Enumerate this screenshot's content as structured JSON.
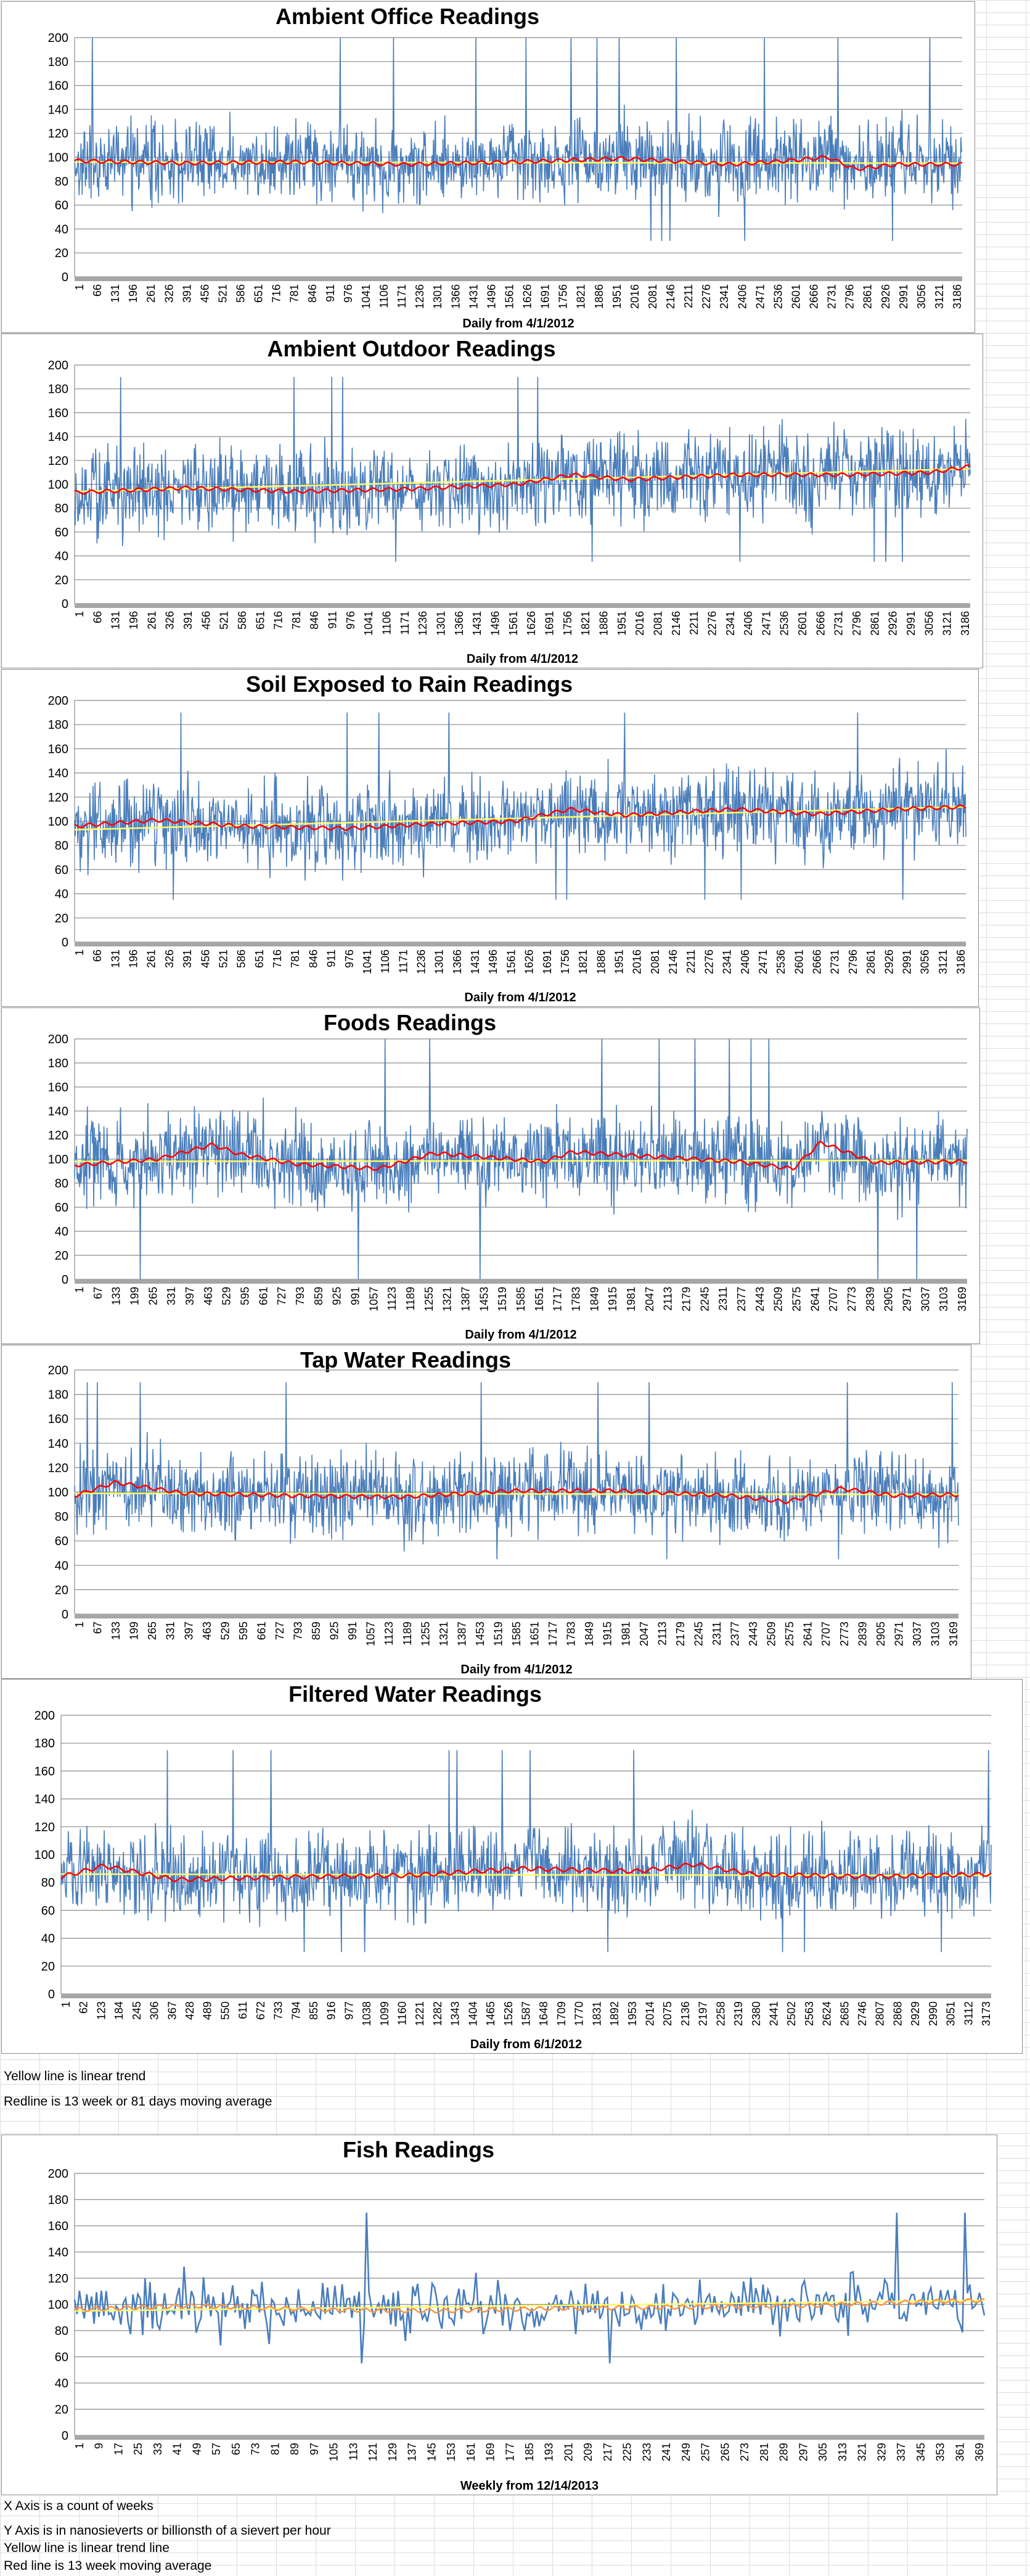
{
  "colors": {
    "raw_series": "#4a7ebb",
    "moving_average": "#ff0000",
    "moving_average_fish": "#f79646",
    "linear_trend": "#ffff66",
    "axis_band": "#a6a6a6",
    "gridline": "#8c8c8c"
  },
  "chart_data": [
    {
      "type": "line",
      "title": "Ambient Office Readings",
      "xlabel": "Daily from 4/1/2012",
      "ylabel": "",
      "ylim": [
        0,
        200
      ],
      "yticks": [
        0,
        20,
        40,
        60,
        80,
        100,
        120,
        140,
        160,
        180,
        200
      ],
      "xticks": [
        "1",
        "66",
        "131",
        "196",
        "261",
        "326",
        "391",
        "456",
        "521",
        "586",
        "651",
        "716",
        "781",
        "846",
        "911",
        "976",
        "1041",
        "1106",
        "1171",
        "1236",
        "1301",
        "1366",
        "1431",
        "1496",
        "1561",
        "1626",
        "1691",
        "1756",
        "1821",
        "1886",
        "1951",
        "2016",
        "2081",
        "2146",
        "2211",
        "2276",
        "2341",
        "2406",
        "2471",
        "2536",
        "2601",
        "2666",
        "2731",
        "2796",
        "2861",
        "2926",
        "2991",
        "3056",
        "3121",
        "3186"
      ],
      "grid": true,
      "series": [
        {
          "role": "raw",
          "x_range": [
            1,
            3240
          ],
          "mean": 95,
          "spread": 22,
          "min": 30,
          "max": 200
        },
        {
          "role": "moving_average",
          "x": [
            1,
            400,
            800,
            1200,
            1600,
            2000,
            2400,
            2600,
            2750,
            2850,
            3000,
            3240
          ],
          "y": [
            97,
            95,
            96,
            94,
            96,
            99,
            94,
            97,
            100,
            90,
            94,
            94
          ]
        },
        {
          "role": "linear_trend",
          "x": [
            1,
            3240
          ],
          "y": [
            96,
            95
          ]
        }
      ]
    },
    {
      "type": "line",
      "title": "Ambient Outdoor Readings",
      "xlabel": "Daily from 4/1/2012",
      "ylabel": "",
      "ylim": [
        0,
        200
      ],
      "yticks": [
        0,
        20,
        40,
        60,
        80,
        100,
        120,
        140,
        160,
        180,
        200
      ],
      "xticks": [
        "1",
        "66",
        "131",
        "196",
        "261",
        "326",
        "391",
        "456",
        "521",
        "586",
        "651",
        "716",
        "781",
        "846",
        "911",
        "976",
        "1041",
        "1106",
        "1171",
        "1236",
        "1301",
        "1366",
        "1431",
        "1496",
        "1561",
        "1626",
        "1691",
        "1756",
        "1821",
        "1886",
        "1951",
        "2016",
        "2081",
        "2146",
        "2211",
        "2276",
        "2341",
        "2406",
        "2471",
        "2536",
        "2601",
        "2666",
        "2731",
        "2796",
        "2861",
        "2926",
        "2991",
        "3056",
        "3121",
        "3186"
      ],
      "grid": true,
      "series": [
        {
          "role": "raw",
          "x_range": [
            1,
            3240
          ],
          "mean": 100,
          "spread": 24,
          "min": 35,
          "max": 190
        },
        {
          "role": "moving_average",
          "x": [
            1,
            400,
            800,
            1200,
            1600,
            1800,
            2000,
            2400,
            2800,
            3100,
            3240
          ],
          "y": [
            93,
            97,
            94,
            96,
            100,
            108,
            104,
            108,
            108,
            110,
            115
          ]
        },
        {
          "role": "linear_trend",
          "x": [
            1,
            3240
          ],
          "y": [
            94,
            113
          ]
        }
      ]
    },
    {
      "type": "line",
      "title": "Soil Exposed to Rain Readings",
      "xlabel": "Daily from 4/1/2012",
      "ylabel": "",
      "ylim": [
        0,
        200
      ],
      "yticks": [
        0,
        20,
        40,
        60,
        80,
        100,
        120,
        140,
        160,
        180,
        200
      ],
      "xticks": [
        "1",
        "66",
        "131",
        "196",
        "261",
        "326",
        "391",
        "456",
        "521",
        "586",
        "651",
        "716",
        "781",
        "846",
        "911",
        "976",
        "1041",
        "1106",
        "1171",
        "1236",
        "1301",
        "1366",
        "1431",
        "1496",
        "1561",
        "1626",
        "1691",
        "1756",
        "1821",
        "1886",
        "1951",
        "2016",
        "2081",
        "2146",
        "2211",
        "2276",
        "2341",
        "2406",
        "2471",
        "2536",
        "2601",
        "2666",
        "2731",
        "2796",
        "2861",
        "2926",
        "2991",
        "3056",
        "3121",
        "3186"
      ],
      "grid": true,
      "series": [
        {
          "role": "raw",
          "x_range": [
            1,
            3240
          ],
          "mean": 102,
          "spread": 23,
          "min": 35,
          "max": 190
        },
        {
          "role": "moving_average",
          "x": [
            1,
            300,
            600,
            1000,
            1300,
            1600,
            1800,
            2000,
            2400,
            2700,
            3000,
            3240
          ],
          "y": [
            96,
            101,
            96,
            94,
            98,
            100,
            110,
            105,
            110,
            106,
            110,
            112
          ]
        },
        {
          "role": "linear_trend",
          "x": [
            1,
            3240
          ],
          "y": [
            93,
            112
          ]
        }
      ]
    },
    {
      "type": "line",
      "title": "Foods Readings",
      "xlabel": "Daily from 4/1/2012",
      "ylabel": "",
      "ylim": [
        0,
        200
      ],
      "yticks": [
        0,
        20,
        40,
        60,
        80,
        100,
        120,
        140,
        160,
        180,
        200
      ],
      "xticks": [
        "1",
        "67",
        "133",
        "199",
        "265",
        "331",
        "397",
        "463",
        "529",
        "595",
        "661",
        "727",
        "793",
        "859",
        "925",
        "991",
        "1057",
        "1123",
        "1189",
        "1255",
        "1321",
        "1387",
        "1453",
        "1519",
        "1585",
        "1651",
        "1717",
        "1783",
        "1849",
        "1915",
        "1981",
        "2047",
        "2113",
        "2179",
        "2245",
        "2311",
        "2377",
        "2443",
        "2509",
        "2575",
        "2641",
        "2707",
        "2773",
        "2839",
        "2905",
        "2971",
        "3037",
        "3103",
        "3169"
      ],
      "grid": true,
      "series": [
        {
          "role": "raw",
          "x_range": [
            1,
            3230
          ],
          "mean": 98,
          "spread": 24,
          "min": 0,
          "max": 200
        },
        {
          "role": "moving_average",
          "x": [
            1,
            300,
            500,
            600,
            800,
            1100,
            1300,
            1700,
            1800,
            2100,
            2400,
            2600,
            2700,
            2900,
            3230
          ],
          "y": [
            95,
            100,
            112,
            104,
            96,
            92,
            105,
            98,
            106,
            102,
            98,
            92,
            114,
            97,
            98
          ]
        },
        {
          "role": "linear_trend",
          "x": [
            1,
            3230
          ],
          "y": [
            98,
            99
          ]
        }
      ]
    },
    {
      "type": "line",
      "title": "Tap Water Readings",
      "xlabel": "Daily from 4/1/2012",
      "ylabel": "",
      "ylim": [
        0,
        200
      ],
      "yticks": [
        0,
        20,
        40,
        60,
        80,
        100,
        120,
        140,
        160,
        180,
        200
      ],
      "xticks": [
        "1",
        "67",
        "133",
        "199",
        "265",
        "331",
        "397",
        "463",
        "529",
        "595",
        "661",
        "727",
        "793",
        "859",
        "925",
        "991",
        "1057",
        "1123",
        "1189",
        "1255",
        "1321",
        "1387",
        "1453",
        "1519",
        "1585",
        "1651",
        "1717",
        "1783",
        "1849",
        "1915",
        "1981",
        "2047",
        "2113",
        "2179",
        "2245",
        "2311",
        "2377",
        "2443",
        "2509",
        "2575",
        "2641",
        "2707",
        "2773",
        "2839",
        "2905",
        "2971",
        "3037",
        "3103",
        "3169"
      ],
      "grid": true,
      "series": [
        {
          "role": "raw",
          "x_range": [
            1,
            3230
          ],
          "mean": 98,
          "spread": 22,
          "min": 45,
          "max": 190
        },
        {
          "role": "moving_average",
          "x": [
            1,
            150,
            400,
            800,
            1200,
            1600,
            2000,
            2400,
            2600,
            2800,
            3000,
            3230
          ],
          "y": [
            97,
            108,
            99,
            97,
            96,
            101,
            101,
            97,
            92,
            103,
            97,
            98
          ]
        },
        {
          "role": "linear_trend",
          "x": [
            1,
            3230
          ],
          "y": [
            99,
            98
          ]
        }
      ]
    },
    {
      "type": "line",
      "title": "Filtered Water Readings",
      "xlabel": "Daily from 6/1/2012",
      "ylabel": "",
      "ylim": [
        0,
        200
      ],
      "yticks": [
        0,
        20,
        40,
        60,
        80,
        100,
        120,
        140,
        160,
        180,
        200
      ],
      "xticks": [
        "1",
        "62",
        "123",
        "184",
        "245",
        "306",
        "367",
        "428",
        "489",
        "550",
        "611",
        "672",
        "733",
        "794",
        "855",
        "916",
        "977",
        "1038",
        "1099",
        "1160",
        "1221",
        "1282",
        "1343",
        "1404",
        "1465",
        "1526",
        "1587",
        "1648",
        "1709",
        "1770",
        "1831",
        "1892",
        "1953",
        "2014",
        "2075",
        "2136",
        "2197",
        "2258",
        "2319",
        "2380",
        "2441",
        "2502",
        "2563",
        "2624",
        "2685",
        "2746",
        "2807",
        "2868",
        "2929",
        "2990",
        "3051",
        "3112",
        "3173"
      ],
      "grid": true,
      "series": [
        {
          "role": "raw",
          "x_range": [
            1,
            3230
          ],
          "mean": 86,
          "spread": 20,
          "min": 30,
          "max": 175
        },
        {
          "role": "moving_average",
          "x": [
            1,
            150,
            400,
            800,
            1200,
            1600,
            2000,
            2200,
            2400,
            2800,
            3230
          ],
          "y": [
            84,
            92,
            82,
            84,
            85,
            90,
            88,
            93,
            86,
            84,
            86
          ]
        },
        {
          "role": "linear_trend",
          "x": [
            1,
            3230
          ],
          "y": [
            86,
            85
          ]
        }
      ]
    },
    {
      "type": "line",
      "title": "Fish Readings",
      "xlabel": "Weekly from 12/14/2013",
      "ylabel": "",
      "ylim": [
        0,
        200
      ],
      "yticks": [
        0,
        20,
        40,
        60,
        80,
        100,
        120,
        140,
        160,
        180,
        200
      ],
      "xticks": [
        "1",
        "9",
        "17",
        "25",
        "33",
        "41",
        "49",
        "57",
        "65",
        "73",
        "81",
        "89",
        "97",
        "105",
        "113",
        "121",
        "129",
        "137",
        "145",
        "153",
        "161",
        "169",
        "177",
        "185",
        "193",
        "201",
        "209",
        "217",
        "225",
        "233",
        "241",
        "249",
        "257",
        "265",
        "273",
        "281",
        "289",
        "297",
        "305",
        "313",
        "321",
        "329",
        "337",
        "345",
        "353",
        "361",
        "369"
      ],
      "grid": true,
      "series": [
        {
          "role": "raw",
          "x_range": [
            1,
            375
          ],
          "mean": 98,
          "spread": 14,
          "min": 55,
          "max": 170
        },
        {
          "role": "moving_average",
          "x": [
            1,
            50,
            100,
            150,
            200,
            250,
            300,
            350,
            375
          ],
          "y": [
            96,
            99,
            96,
            95,
            97,
            98,
            99,
            102,
            103
          ]
        },
        {
          "role": "linear_trend",
          "x": [
            1,
            375
          ],
          "y": [
            95,
            103
          ]
        }
      ]
    }
  ],
  "notes": {
    "daily_yellow": "Yellow line is linear trend",
    "daily_red": "Redline is 13 week or 81 days moving average",
    "fish_x": "X Axis is a count of weeks",
    "fish_y": "Y Axis is in nanosieverts or billionsth of a sievert per hour",
    "fish_yellow": "Yellow line is linear trend line",
    "fish_red": "Red line is 13 week moving average"
  }
}
